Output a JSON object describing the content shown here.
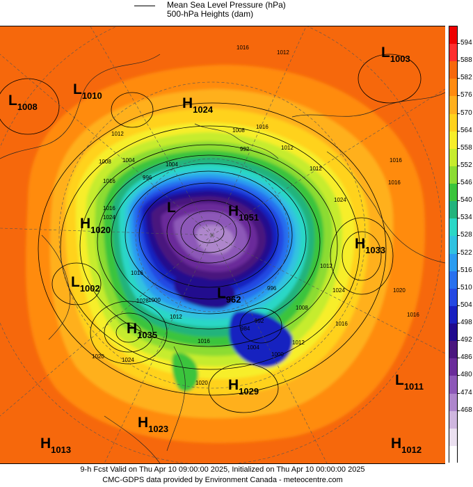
{
  "legend": {
    "mslp": "Mean Sea Level Pressure (hPa)",
    "heights": "500-hPa Heights (dam)"
  },
  "pressure_systems": [
    {
      "type": "L",
      "value": "1003"
    },
    {
      "type": "L",
      "value": "1010"
    },
    {
      "type": "L",
      "value": "1008"
    },
    {
      "type": "H",
      "value": "1024"
    },
    {
      "type": "H",
      "value": "1020"
    },
    {
      "type": "L",
      "value": ""
    },
    {
      "type": "H",
      "value": "1051"
    },
    {
      "type": "H",
      "value": "1033"
    },
    {
      "type": "L",
      "value": "1002"
    },
    {
      "type": "L",
      "value": "962"
    },
    {
      "type": "H",
      "value": "1035"
    },
    {
      "type": "H",
      "value": "1029"
    },
    {
      "type": "L",
      "value": "1011"
    },
    {
      "type": "H",
      "value": "1023"
    },
    {
      "type": "H",
      "value": "1013"
    },
    {
      "type": "H",
      "value": "1012"
    }
  ],
  "isobar_labels": [
    "1016",
    "1012",
    "1012",
    "1016",
    "1008",
    "1004",
    "1004",
    "996",
    "1016",
    "1008",
    "1012",
    "1012",
    "992",
    "1016",
    "1024",
    "1012",
    "1016",
    "1024",
    "1008",
    "996",
    "1012",
    "1000",
    "992",
    "1012",
    "1016",
    "1020",
    "984",
    "1016",
    "1004",
    "1000",
    "1016",
    "1028",
    "1024",
    "1020",
    "1020",
    "1016",
    "1016",
    "1024"
  ],
  "colorbar": {
    "labels": [
      "594",
      "588",
      "582",
      "576",
      "570",
      "564",
      "558",
      "552",
      "546",
      "540",
      "534",
      "528",
      "522",
      "516",
      "510",
      "504",
      "498",
      "492",
      "486",
      "480",
      "474",
      "468"
    ],
    "colors": [
      "#ee0000",
      "#ff2e2e",
      "#f6680c",
      "#ff8b10",
      "#ffb01e",
      "#ffd21e",
      "#f7ee2a",
      "#c6ec2e",
      "#8cdc33",
      "#3ac43c",
      "#22b37c",
      "#2bd7c6",
      "#30c2e0",
      "#2b9cf0",
      "#2870ee",
      "#2448e2",
      "#1820c0",
      "#200a8e",
      "#4a167e",
      "#6a2c9a",
      "#8d58b8",
      "#ae86cc",
      "#cfb6df",
      "#ebe0f0",
      "#ffffff"
    ]
  },
  "footer": {
    "line1": "9-h Fcst Valid on Thu Apr 10 09:00:00 2025, Initialized on Thu Apr 10 00:00:00 2025",
    "line2": "CMC-GDPS data provided by Environment Canada - meteocentre.com"
  }
}
